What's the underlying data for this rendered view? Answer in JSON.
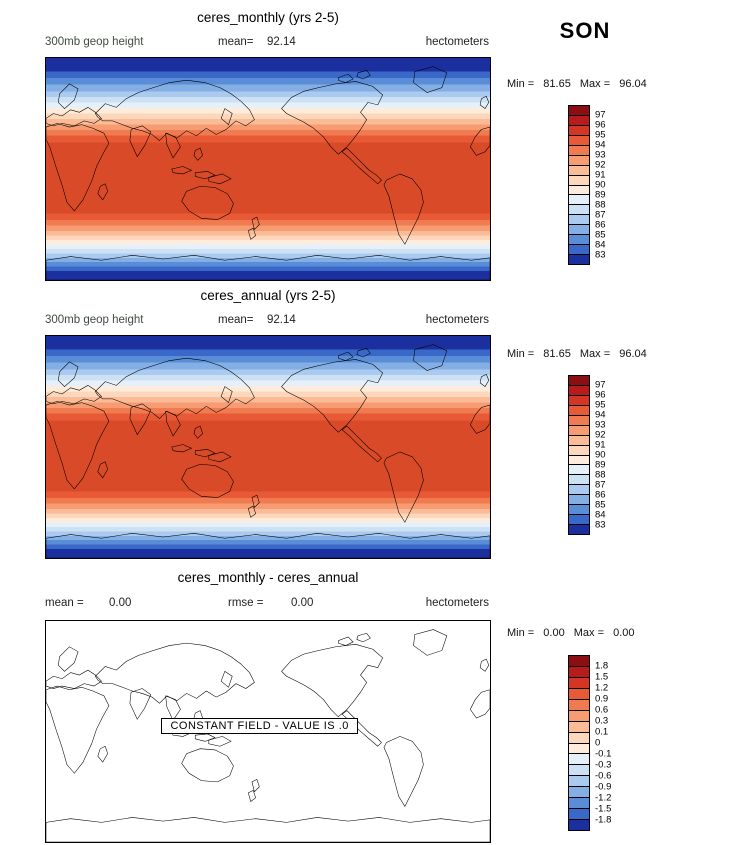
{
  "season_label": "SON",
  "panels": [
    {
      "title": "ceres_monthly (yrs 2-5)",
      "field_label": "300mb geop height",
      "stats": {
        "mean_label": "mean=",
        "mean_value": "92.14"
      },
      "units": "hectometers",
      "minmax": {
        "min_label": "Min =",
        "min_value": "81.65",
        "max_label": "Max =",
        "max_value": "96.04"
      }
    },
    {
      "title": "ceres_annual (yrs 2-5)",
      "field_label": "300mb geop height",
      "stats": {
        "mean_label": "mean=",
        "mean_value": "92.14"
      },
      "units": "hectometers",
      "minmax": {
        "min_label": "Min =",
        "min_value": "81.65",
        "max_label": "Max =",
        "max_value": "96.04"
      }
    },
    {
      "title": "ceres_monthly - ceres_annual",
      "stats": {
        "mean_label": "mean =",
        "mean_value": "0.00",
        "rmse_label": "rmse =",
        "rmse_value": "0.00"
      },
      "units": "hectometers",
      "minmax": {
        "min_label": "Min =",
        "min_value": "0.00",
        "max_label": "Max =",
        "max_value": "0.00"
      },
      "constant_field_note": "CONSTANT FIELD - VALUE IS .0"
    }
  ],
  "colorbars": {
    "height": {
      "colors": [
        "#8b0f12",
        "#b71b1c",
        "#d53523",
        "#e75a35",
        "#f17b50",
        "#f79c72",
        "#fbbb96",
        "#fdd7bb",
        "#fdecdc",
        "#e6f0fa",
        "#cde1f5",
        "#aacbef",
        "#83afe5",
        "#5a8dd8",
        "#3a68c8",
        "#1c2f9e"
      ],
      "labels": [
        "97",
        "96",
        "95",
        "94",
        "93",
        "92",
        "91",
        "90",
        "89",
        "88",
        "87",
        "86",
        "85",
        "84",
        "83"
      ]
    },
    "diff": {
      "colors": [
        "#8b0f12",
        "#b71b1c",
        "#d53523",
        "#e75a35",
        "#f17b50",
        "#f79c72",
        "#fbbb96",
        "#fdd7bb",
        "#fdecdc",
        "#e6f0fa",
        "#cde1f5",
        "#aacbef",
        "#83afe5",
        "#5a8dd8",
        "#3a68c8",
        "#1c2f9e"
      ],
      "labels": [
        "1.8",
        "1.5",
        "1.2",
        "0.9",
        "0.6",
        "0.3",
        "0.1",
        "0",
        "-0.1",
        "-0.3",
        "-0.6",
        "-0.9",
        "-1.2",
        "-1.5",
        "-1.8"
      ]
    }
  },
  "map_bands": [
    {
      "o": 0,
      "c": "#1c2f9e"
    },
    {
      "o": 6,
      "c": "#1c2f9e"
    },
    {
      "o": 6,
      "c": "#3a68c8"
    },
    {
      "o": 9,
      "c": "#3a68c8"
    },
    {
      "o": 9,
      "c": "#5a8dd8"
    },
    {
      "o": 12,
      "c": "#5a8dd8"
    },
    {
      "o": 12,
      "c": "#83afe5"
    },
    {
      "o": 15,
      "c": "#83afe5"
    },
    {
      "o": 15,
      "c": "#aacbef"
    },
    {
      "o": 17.5,
      "c": "#aacbef"
    },
    {
      "o": 17.5,
      "c": "#cde1f5"
    },
    {
      "o": 20,
      "c": "#cde1f5"
    },
    {
      "o": 20,
      "c": "#e6f0fa"
    },
    {
      "o": 22.5,
      "c": "#e6f0fa"
    },
    {
      "o": 22.5,
      "c": "#fdecdc"
    },
    {
      "o": 25,
      "c": "#fdecdc"
    },
    {
      "o": 25,
      "c": "#fdd7bb"
    },
    {
      "o": 27.5,
      "c": "#fdd7bb"
    },
    {
      "o": 27.5,
      "c": "#fbbb96"
    },
    {
      "o": 30,
      "c": "#fbbb96"
    },
    {
      "o": 30,
      "c": "#f79c72"
    },
    {
      "o": 32.5,
      "c": "#f79c72"
    },
    {
      "o": 32.5,
      "c": "#f17b50"
    },
    {
      "o": 35,
      "c": "#f17b50"
    },
    {
      "o": 35,
      "c": "#e75a35"
    },
    {
      "o": 38,
      "c": "#e75a35"
    },
    {
      "o": 38,
      "c": "#d94a28"
    },
    {
      "o": 70,
      "c": "#d94a28"
    },
    {
      "o": 70,
      "c": "#e75a35"
    },
    {
      "o": 73,
      "c": "#e75a35"
    },
    {
      "o": 73,
      "c": "#f17b50"
    },
    {
      "o": 75.5,
      "c": "#f17b50"
    },
    {
      "o": 75.5,
      "c": "#f79c72"
    },
    {
      "o": 78,
      "c": "#f79c72"
    },
    {
      "o": 78,
      "c": "#fbbb96"
    },
    {
      "o": 80,
      "c": "#fbbb96"
    },
    {
      "o": 80,
      "c": "#fdd7bb"
    },
    {
      "o": 82,
      "c": "#fdd7bb"
    },
    {
      "o": 82,
      "c": "#fdecdc"
    },
    {
      "o": 84,
      "c": "#fdecdc"
    },
    {
      "o": 84,
      "c": "#e6f0fa"
    },
    {
      "o": 86,
      "c": "#e6f0fa"
    },
    {
      "o": 86,
      "c": "#cde1f5"
    },
    {
      "o": 88,
      "c": "#cde1f5"
    },
    {
      "o": 88,
      "c": "#aacbef"
    },
    {
      "o": 90,
      "c": "#aacbef"
    },
    {
      "o": 90,
      "c": "#83afe5"
    },
    {
      "o": 92,
      "c": "#83afe5"
    },
    {
      "o": 92,
      "c": "#5a8dd8"
    },
    {
      "o": 94,
      "c": "#5a8dd8"
    },
    {
      "o": 94,
      "c": "#3a68c8"
    },
    {
      "o": 96,
      "c": "#3a68c8"
    },
    {
      "o": 96,
      "c": "#1c2f9e"
    },
    {
      "o": 100,
      "c": "#1c2f9e"
    }
  ],
  "chart_data": [
    {
      "type": "heatmap",
      "panel": "top",
      "title": "ceres_monthly (yrs 2-5)",
      "field": "300mb geop height",
      "season": "SON",
      "units": "hectometers",
      "mean": 92.14,
      "min": 81.65,
      "max": 96.04,
      "projection": "global lat-lon map, lon 0-360E left to right, lat 90N top to 90S bottom",
      "contour_levels": [
        83,
        84,
        85,
        86,
        87,
        88,
        89,
        90,
        91,
        92,
        93,
        94,
        95,
        96,
        97
      ],
      "legend_position": "right",
      "zonal_mean_profile": {
        "lat": [
          90,
          80,
          70,
          60,
          50,
          45,
          40,
          35,
          30,
          25,
          20,
          0,
          -20,
          -25,
          -30,
          -35,
          -40,
          -45,
          -50,
          -60,
          -70,
          -80,
          -90
        ],
        "value": [
          82.0,
          83.0,
          84.5,
          86.0,
          88.0,
          89.5,
          91.0,
          92.5,
          94.0,
          95.2,
          95.8,
          96.0,
          95.8,
          95.2,
          94.0,
          92.5,
          91.0,
          89.5,
          88.0,
          85.5,
          83.5,
          82.2,
          81.7
        ]
      }
    },
    {
      "type": "heatmap",
      "panel": "middle",
      "title": "ceres_annual (yrs 2-5)",
      "field": "300mb geop height",
      "season": "SON",
      "units": "hectometers",
      "mean": 92.14,
      "min": 81.65,
      "max": 96.04,
      "projection": "global lat-lon map, lon 0-360E left to right, lat 90N top to 90S bottom",
      "contour_levels": [
        83,
        84,
        85,
        86,
        87,
        88,
        89,
        90,
        91,
        92,
        93,
        94,
        95,
        96,
        97
      ],
      "legend_position": "right",
      "zonal_mean_profile": {
        "lat": [
          90,
          80,
          70,
          60,
          50,
          45,
          40,
          35,
          30,
          25,
          20,
          0,
          -20,
          -25,
          -30,
          -35,
          -40,
          -45,
          -50,
          -60,
          -70,
          -80,
          -90
        ],
        "value": [
          82.0,
          83.0,
          84.5,
          86.0,
          88.0,
          89.5,
          91.0,
          92.5,
          94.0,
          95.2,
          95.8,
          96.0,
          95.8,
          95.2,
          94.0,
          92.5,
          91.0,
          89.5,
          88.0,
          85.5,
          83.5,
          82.2,
          81.7
        ]
      }
    },
    {
      "type": "heatmap",
      "panel": "bottom",
      "title": "ceres_monthly - ceres_annual",
      "season": "SON",
      "units": "hectometers",
      "mean": 0.0,
      "rmse": 0.0,
      "min": 0.0,
      "max": 0.0,
      "constant_field": true,
      "note": "CONSTANT FIELD - VALUE IS .0",
      "value_everywhere": 0.0,
      "contour_levels": [
        -1.8,
        -1.5,
        -1.2,
        -0.9,
        -0.6,
        -0.3,
        -0.1,
        0,
        0.1,
        0.3,
        0.6,
        0.9,
        1.2,
        1.5,
        1.8
      ],
      "legend_position": "right"
    }
  ]
}
